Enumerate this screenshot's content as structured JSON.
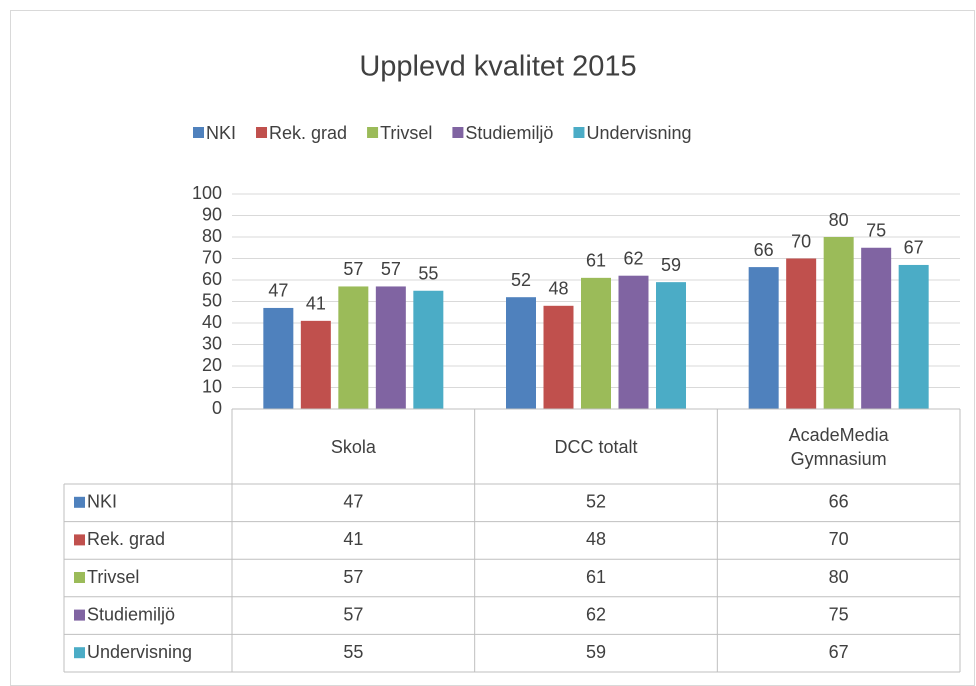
{
  "chart_data": {
    "type": "bar",
    "title": "Upplevd kvalitet 2015",
    "categories": [
      "Skola",
      "DCC totalt",
      "AcadeMedia Gymnasium"
    ],
    "series": [
      {
        "name": "NKI",
        "color": "#4f81bd",
        "values": [
          47,
          52,
          66
        ]
      },
      {
        "name": "Rek. grad",
        "color": "#c0504d",
        "values": [
          41,
          48,
          70
        ]
      },
      {
        "name": "Trivsel",
        "color": "#9bbb59",
        "values": [
          57,
          61,
          80
        ]
      },
      {
        "name": "Studiemiljö",
        "color": "#8064a2",
        "values": [
          57,
          62,
          75
        ]
      },
      {
        "name": "Undervisning",
        "color": "#4bacc6",
        "values": [
          55,
          59,
          67
        ]
      }
    ],
    "ylim": [
      0,
      100
    ],
    "yticks": [
      0,
      10,
      20,
      30,
      40,
      50,
      60,
      70,
      80,
      90,
      100
    ],
    "grid": true,
    "legend": "top",
    "data_table": true
  }
}
